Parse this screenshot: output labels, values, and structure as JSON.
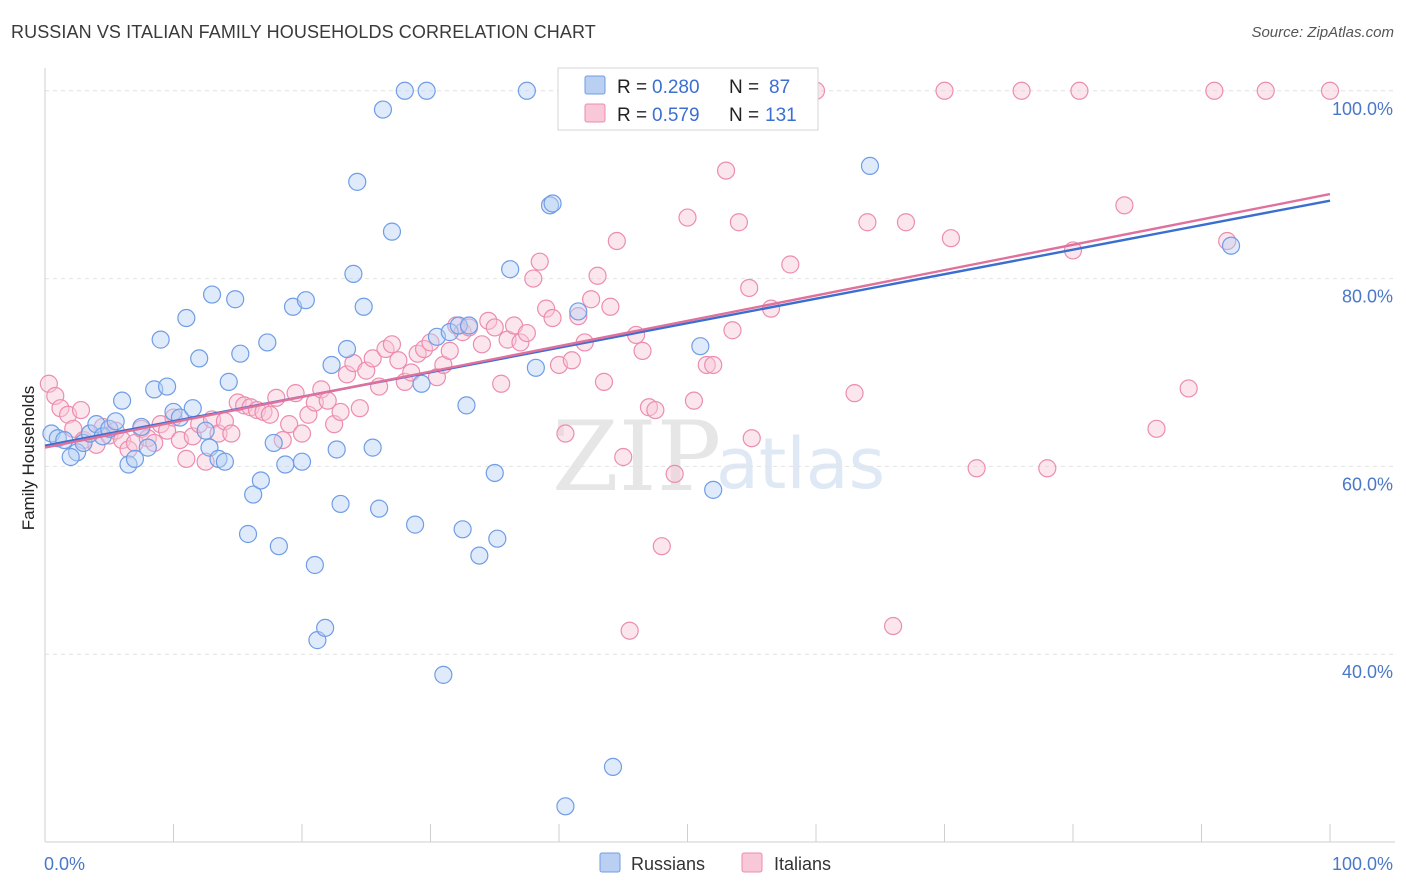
{
  "header": {
    "title": "RUSSIAN VS ITALIAN FAMILY HOUSEHOLDS CORRELATION CHART",
    "source": "Source: ZipAtlas.com"
  },
  "watermark": {
    "zip": "ZIP",
    "atlas": "atlas"
  },
  "legend": {
    "rows": [
      {
        "r_label": "R =",
        "r_value": "0.280",
        "n_label": "N =",
        "n_value": "87"
      },
      {
        "r_label": "R =",
        "r_value": "0.579",
        "n_label": "N =",
        "n_value": "131"
      }
    ]
  },
  "chart_data": {
    "type": "scatter",
    "title": "RUSSIAN VS ITALIAN FAMILY HOUSEHOLDS CORRELATION CHART",
    "xlabel": "",
    "ylabel": "Family Households",
    "xlim": [
      0,
      100
    ],
    "ylim": [
      20,
      102
    ],
    "x_tick_labels": [
      "0.0%",
      "100.0%"
    ],
    "y_ticks": [
      40,
      60,
      80,
      100
    ],
    "y_tick_labels": [
      "40.0%",
      "60.0%",
      "80.0%",
      "100.0%"
    ],
    "grid": true,
    "legend_position": "bottom",
    "series": [
      {
        "name": "Russians",
        "color": "#6f9de6",
        "fill": "#b9d0f3",
        "trend": [
          [
            0,
            62.2
          ],
          [
            100,
            88.3
          ]
        ],
        "points": [
          [
            0.5,
            63.5
          ],
          [
            1.0,
            63.0
          ],
          [
            1.5,
            62.8
          ],
          [
            2.5,
            61.5
          ],
          [
            2.0,
            61.0
          ],
          [
            3.0,
            62.5
          ],
          [
            3.5,
            63.5
          ],
          [
            4.0,
            64.5
          ],
          [
            4.5,
            63.2
          ],
          [
            5.0,
            64.0
          ],
          [
            5.5,
            64.8
          ],
          [
            6.0,
            67.0
          ],
          [
            6.5,
            60.2
          ],
          [
            7.0,
            60.8
          ],
          [
            7.5,
            64.2
          ],
          [
            8.0,
            62.0
          ],
          [
            8.5,
            68.2
          ],
          [
            9.0,
            73.5
          ],
          [
            9.5,
            68.5
          ],
          [
            10.0,
            65.8
          ],
          [
            10.5,
            65.2
          ],
          [
            11.0,
            75.8
          ],
          [
            11.5,
            66.2
          ],
          [
            12.0,
            71.5
          ],
          [
            12.5,
            63.8
          ],
          [
            12.8,
            62.0
          ],
          [
            13.0,
            78.3
          ],
          [
            13.5,
            60.8
          ],
          [
            14.0,
            60.5
          ],
          [
            14.3,
            69.0
          ],
          [
            14.8,
            77.8
          ],
          [
            15.2,
            72.0
          ],
          [
            15.8,
            52.8
          ],
          [
            16.2,
            57.0
          ],
          [
            16.8,
            58.5
          ],
          [
            17.3,
            73.2
          ],
          [
            17.8,
            62.5
          ],
          [
            18.2,
            51.5
          ],
          [
            18.7,
            60.2
          ],
          [
            19.3,
            77.0
          ],
          [
            20.0,
            60.5
          ],
          [
            20.3,
            77.7
          ],
          [
            21.0,
            49.5
          ],
          [
            21.2,
            41.5
          ],
          [
            21.8,
            42.8
          ],
          [
            22.3,
            70.8
          ],
          [
            22.7,
            61.8
          ],
          [
            23.0,
            56.0
          ],
          [
            23.5,
            72.5
          ],
          [
            24.0,
            80.5
          ],
          [
            24.3,
            90.3
          ],
          [
            24.8,
            77.0
          ],
          [
            25.5,
            62.0
          ],
          [
            26.0,
            55.5
          ],
          [
            26.3,
            98.0
          ],
          [
            27.0,
            85.0
          ],
          [
            28.0,
            100.0
          ],
          [
            28.8,
            53.8
          ],
          [
            29.3,
            68.8
          ],
          [
            29.7,
            100.0
          ],
          [
            30.5,
            73.8
          ],
          [
            31.0,
            37.8
          ],
          [
            31.5,
            74.3
          ],
          [
            32.2,
            75.0
          ],
          [
            32.5,
            53.3
          ],
          [
            32.8,
            66.5
          ],
          [
            33.0,
            75.0
          ],
          [
            33.8,
            50.5
          ],
          [
            35.0,
            59.3
          ],
          [
            35.2,
            52.3
          ],
          [
            36.2,
            81.0
          ],
          [
            37.5,
            100.0
          ],
          [
            38.2,
            70.5
          ],
          [
            39.3,
            87.8
          ],
          [
            39.5,
            88.0
          ],
          [
            40.5,
            23.8
          ],
          [
            41.5,
            76.5
          ],
          [
            44.2,
            28.0
          ],
          [
            45.3,
            100.0
          ],
          [
            51.0,
            72.8
          ],
          [
            52.0,
            57.5
          ],
          [
            64.2,
            92.0
          ],
          [
            92.3,
            83.5
          ]
        ]
      },
      {
        "name": "Italians",
        "color": "#ec8db0",
        "fill": "#f8c8d8",
        "trend": [
          [
            0,
            62.0
          ],
          [
            100,
            89.0
          ]
        ],
        "points": [
          [
            0.3,
            68.8
          ],
          [
            0.8,
            67.5
          ],
          [
            1.2,
            66.2
          ],
          [
            1.8,
            65.5
          ],
          [
            2.2,
            64.0
          ],
          [
            2.8,
            66.0
          ],
          [
            3.0,
            62.8
          ],
          [
            3.5,
            63.5
          ],
          [
            4.0,
            62.3
          ],
          [
            4.5,
            64.2
          ],
          [
            5.0,
            63.3
          ],
          [
            5.5,
            63.8
          ],
          [
            6.0,
            62.8
          ],
          [
            6.5,
            61.8
          ],
          [
            7.0,
            62.5
          ],
          [
            7.5,
            64.0
          ],
          [
            8.0,
            63.0
          ],
          [
            8.5,
            62.5
          ],
          [
            9.0,
            64.5
          ],
          [
            9.5,
            63.8
          ],
          [
            10.0,
            65.2
          ],
          [
            10.5,
            62.8
          ],
          [
            11.0,
            60.8
          ],
          [
            11.5,
            63.2
          ],
          [
            12.0,
            64.5
          ],
          [
            12.5,
            60.5
          ],
          [
            13.0,
            65.0
          ],
          [
            13.5,
            63.5
          ],
          [
            14.0,
            64.8
          ],
          [
            14.5,
            63.5
          ],
          [
            15.0,
            66.8
          ],
          [
            15.5,
            66.5
          ],
          [
            16.0,
            66.3
          ],
          [
            16.5,
            66.0
          ],
          [
            17.0,
            65.8
          ],
          [
            17.5,
            65.5
          ],
          [
            18.0,
            67.3
          ],
          [
            18.5,
            62.8
          ],
          [
            19.0,
            64.5
          ],
          [
            19.5,
            67.8
          ],
          [
            20.0,
            63.5
          ],
          [
            20.5,
            65.5
          ],
          [
            21.0,
            66.8
          ],
          [
            21.5,
            68.2
          ],
          [
            22.0,
            67.0
          ],
          [
            22.5,
            64.5
          ],
          [
            23.0,
            65.8
          ],
          [
            23.5,
            69.8
          ],
          [
            24.0,
            71.0
          ],
          [
            24.5,
            66.2
          ],
          [
            25.0,
            70.2
          ],
          [
            25.5,
            71.5
          ],
          [
            26.0,
            68.5
          ],
          [
            26.5,
            72.5
          ],
          [
            27.0,
            73.0
          ],
          [
            27.5,
            71.3
          ],
          [
            28.0,
            69.0
          ],
          [
            28.5,
            70.0
          ],
          [
            29.0,
            72.0
          ],
          [
            29.5,
            72.5
          ],
          [
            30.0,
            73.2
          ],
          [
            30.5,
            69.5
          ],
          [
            31.0,
            70.8
          ],
          [
            31.5,
            72.3
          ],
          [
            32.0,
            75.0
          ],
          [
            32.5,
            74.3
          ],
          [
            33.0,
            74.8
          ],
          [
            34.0,
            73.0
          ],
          [
            34.5,
            75.5
          ],
          [
            35.0,
            74.8
          ],
          [
            35.5,
            68.8
          ],
          [
            36.0,
            73.5
          ],
          [
            36.5,
            75.0
          ],
          [
            37.0,
            73.2
          ],
          [
            37.5,
            74.2
          ],
          [
            38.0,
            80.0
          ],
          [
            38.5,
            81.8
          ],
          [
            39.0,
            76.8
          ],
          [
            39.5,
            75.8
          ],
          [
            40.0,
            70.8
          ],
          [
            40.5,
            63.5
          ],
          [
            41.0,
            71.3
          ],
          [
            41.5,
            76.0
          ],
          [
            42.0,
            73.2
          ],
          [
            42.5,
            77.8
          ],
          [
            43.0,
            80.3
          ],
          [
            43.5,
            69.0
          ],
          [
            44.0,
            77.0
          ],
          [
            44.5,
            84.0
          ],
          [
            45.0,
            61.0
          ],
          [
            45.5,
            42.5
          ],
          [
            46.0,
            74.0
          ],
          [
            46.5,
            72.3
          ],
          [
            47.0,
            66.3
          ],
          [
            47.5,
            66.0
          ],
          [
            48.0,
            51.5
          ],
          [
            49.0,
            59.2
          ],
          [
            50.0,
            86.5
          ],
          [
            50.5,
            67.0
          ],
          [
            51.5,
            70.8
          ],
          [
            52.0,
            70.8
          ],
          [
            53.0,
            91.5
          ],
          [
            53.5,
            74.5
          ],
          [
            54.0,
            86.0
          ],
          [
            54.8,
            79.0
          ],
          [
            55.0,
            63.0
          ],
          [
            56.5,
            76.8
          ],
          [
            58.0,
            81.5
          ],
          [
            60.0,
            100.0
          ],
          [
            63.0,
            67.8
          ],
          [
            64.0,
            86.0
          ],
          [
            66.0,
            43.0
          ],
          [
            67.0,
            86.0
          ],
          [
            70.0,
            100.0
          ],
          [
            70.5,
            84.3
          ],
          [
            72.5,
            59.8
          ],
          [
            76.0,
            100.0
          ],
          [
            78.0,
            59.8
          ],
          [
            80.0,
            83.0
          ],
          [
            80.5,
            100.0
          ],
          [
            84.0,
            87.8
          ],
          [
            86.5,
            64.0
          ],
          [
            89.0,
            68.3
          ],
          [
            91.0,
            100.0
          ],
          [
            92.0,
            84.0
          ],
          [
            95.0,
            100.0
          ],
          [
            100.0,
            100.0
          ]
        ]
      }
    ]
  }
}
